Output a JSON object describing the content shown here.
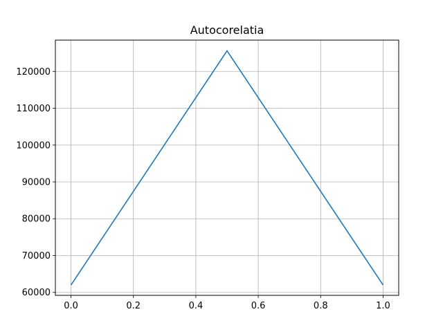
{
  "chart_data": {
    "type": "line",
    "title": "Autocorelatia",
    "xlabel": "",
    "ylabel": "",
    "xlim": [
      -0.05,
      1.05
    ],
    "ylim": [
      59200,
      128500
    ],
    "x_ticks": [
      0.0,
      0.2,
      0.4,
      0.6,
      0.8,
      1.0
    ],
    "x_tick_labels": [
      "0.0",
      "0.2",
      "0.4",
      "0.6",
      "0.8",
      "1.0"
    ],
    "y_ticks": [
      60000,
      70000,
      80000,
      90000,
      100000,
      110000,
      120000
    ],
    "y_tick_labels": [
      "60000",
      "70000",
      "80000",
      "90000",
      "100000",
      "110000",
      "120000"
    ],
    "grid": true,
    "series": [
      {
        "color": "#1f77b4",
        "x": [
          0.0,
          0.5,
          1.0
        ],
        "y": [
          62000,
          125600,
          62000
        ]
      }
    ]
  }
}
